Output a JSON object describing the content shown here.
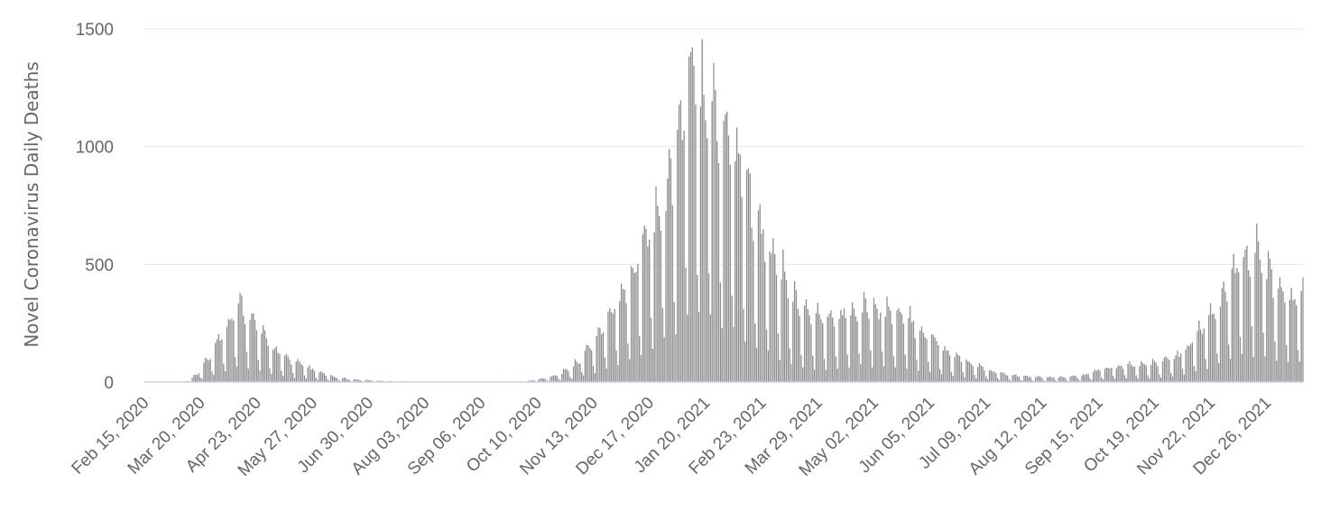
{
  "chart_data": {
    "type": "bar",
    "title": "",
    "xlabel": "",
    "ylabel": "Novel Coronavirus Daily Deaths",
    "ylim": [
      0,
      1500
    ],
    "yticks": [
      0,
      500,
      1000,
      1500
    ],
    "grid": true,
    "legend": "none",
    "bar_color": "#8c8c8c",
    "x_start": "2020-02-15",
    "x_end": "2022-01-17",
    "x_tick_labels": [
      {
        "date": "2020-02-15",
        "label": "Feb 15, 2020"
      },
      {
        "date": "2020-03-20",
        "label": "Mar 20, 2020"
      },
      {
        "date": "2020-04-23",
        "label": "Apr 23, 2020"
      },
      {
        "date": "2020-05-27",
        "label": "May 27, 2020"
      },
      {
        "date": "2020-06-30",
        "label": "Jun 30, 2020"
      },
      {
        "date": "2020-08-03",
        "label": "Aug 03, 2020"
      },
      {
        "date": "2020-09-06",
        "label": "Sep 06, 2020"
      },
      {
        "date": "2020-10-10",
        "label": "Oct 10, 2020"
      },
      {
        "date": "2020-11-13",
        "label": "Nov 13, 2020"
      },
      {
        "date": "2020-12-17",
        "label": "Dec 17, 2020"
      },
      {
        "date": "2021-01-20",
        "label": "Jan 20, 2021"
      },
      {
        "date": "2021-02-23",
        "label": "Feb 23, 2021"
      },
      {
        "date": "2021-03-29",
        "label": "Mar 29, 2021"
      },
      {
        "date": "2021-05-02",
        "label": "May 02, 2021"
      },
      {
        "date": "2021-06-05",
        "label": "Jun 05, 2021"
      },
      {
        "date": "2021-07-09",
        "label": "Jul 09, 2021"
      },
      {
        "date": "2021-08-12",
        "label": "Aug 12, 2021"
      },
      {
        "date": "2021-09-15",
        "label": "Sep 15, 2021"
      },
      {
        "date": "2021-10-19",
        "label": "Oct 19, 2021"
      },
      {
        "date": "2021-11-22",
        "label": "Nov 22, 2021"
      },
      {
        "date": "2021-12-26",
        "label": "Dec 26, 2021"
      }
    ],
    "series": [
      {
        "trend": [
          [
            "2020-02-15",
            0
          ],
          [
            "2020-03-08",
            0
          ],
          [
            "2020-03-12",
            5
          ],
          [
            "2020-03-18",
            30
          ],
          [
            "2020-03-25",
            90
          ],
          [
            "2020-04-01",
            170
          ],
          [
            "2020-04-08",
            250
          ],
          [
            "2020-04-14",
            285
          ],
          [
            "2020-04-20",
            250
          ],
          [
            "2020-04-26",
            180
          ],
          [
            "2020-05-03",
            130
          ],
          [
            "2020-05-10",
            95
          ],
          [
            "2020-05-17",
            75
          ],
          [
            "2020-05-24",
            55
          ],
          [
            "2020-06-01",
            35
          ],
          [
            "2020-06-10",
            18
          ],
          [
            "2020-06-22",
            10
          ],
          [
            "2020-07-10",
            4
          ],
          [
            "2020-08-10",
            2
          ],
          [
            "2020-09-25",
            2
          ],
          [
            "2020-10-05",
            5
          ],
          [
            "2020-10-15",
            15
          ],
          [
            "2020-10-25",
            35
          ],
          [
            "2020-11-01",
            60
          ],
          [
            "2020-11-08",
            110
          ],
          [
            "2020-11-15",
            170
          ],
          [
            "2020-11-22",
            240
          ],
          [
            "2020-11-29",
            320
          ],
          [
            "2020-12-06",
            410
          ],
          [
            "2020-12-13",
            500
          ],
          [
            "2020-12-20",
            620
          ],
          [
            "2020-12-27",
            700
          ],
          [
            "2021-01-03",
            900
          ],
          [
            "2021-01-10",
            1100
          ],
          [
            "2021-01-17",
            1150
          ],
          [
            "2021-01-24",
            1050
          ],
          [
            "2021-01-31",
            950
          ],
          [
            "2021-02-07",
            880
          ],
          [
            "2021-02-14",
            720
          ],
          [
            "2021-02-21",
            580
          ],
          [
            "2021-02-28",
            480
          ],
          [
            "2021-03-07",
            400
          ],
          [
            "2021-03-14",
            320
          ],
          [
            "2021-03-21",
            260
          ],
          [
            "2021-03-28",
            240
          ],
          [
            "2021-04-04",
            230
          ],
          [
            "2021-04-11",
            240
          ],
          [
            "2021-04-18",
            280
          ],
          [
            "2021-04-25",
            290
          ],
          [
            "2021-05-02",
            280
          ],
          [
            "2021-05-09",
            270
          ],
          [
            "2021-05-16",
            250
          ],
          [
            "2021-05-23",
            230
          ],
          [
            "2021-05-30",
            200
          ],
          [
            "2021-06-06",
            170
          ],
          [
            "2021-06-13",
            130
          ],
          [
            "2021-06-20",
            100
          ],
          [
            "2021-06-27",
            80
          ],
          [
            "2021-07-04",
            60
          ],
          [
            "2021-07-11",
            45
          ],
          [
            "2021-07-20",
            30
          ],
          [
            "2021-08-01",
            22
          ],
          [
            "2021-08-15",
            18
          ],
          [
            "2021-08-29",
            20
          ],
          [
            "2021-09-08",
            30
          ],
          [
            "2021-09-15",
            45
          ],
          [
            "2021-09-22",
            55
          ],
          [
            "2021-09-29",
            60
          ],
          [
            "2021-10-08",
            65
          ],
          [
            "2021-10-19",
            70
          ],
          [
            "2021-10-31",
            90
          ],
          [
            "2021-11-07",
            130
          ],
          [
            "2021-11-14",
            180
          ],
          [
            "2021-11-21",
            240
          ],
          [
            "2021-11-28",
            300
          ],
          [
            "2021-12-05",
            380
          ],
          [
            "2021-12-12",
            470
          ],
          [
            "2021-12-19",
            480
          ],
          [
            "2021-12-26",
            430
          ],
          [
            "2022-01-02",
            360
          ],
          [
            "2022-01-09",
            330
          ],
          [
            "2022-01-17",
            320
          ]
        ],
        "weekday_factors": [
          0.25,
          1.15,
          1.3,
          1.2,
          1.1,
          1.0,
          0.45
        ]
      }
    ]
  }
}
